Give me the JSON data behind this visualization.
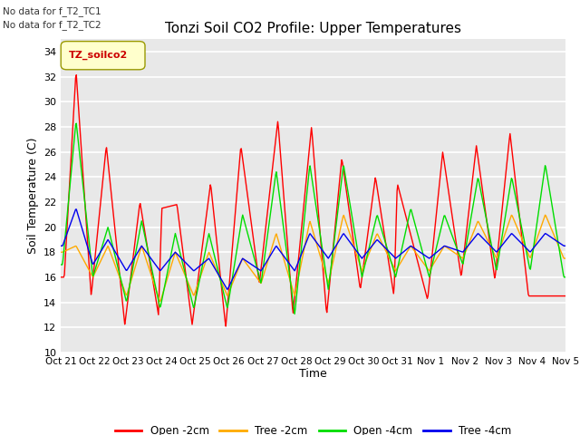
{
  "title": "Tonzi Soil CO2 Profile: Upper Temperatures",
  "ylabel": "Soil Temperature (C)",
  "xlabel": "Time",
  "annotation_line1": "No data for f_T2_TC1",
  "annotation_line2": "No data for f_T2_TC2",
  "legend_label": "TZ_soilco2",
  "series_labels": [
    "Open -2cm",
    "Tree -2cm",
    "Open -4cm",
    "Tree -4cm"
  ],
  "series_colors": [
    "#ff0000",
    "#ffaa00",
    "#00dd00",
    "#0000ee"
  ],
  "ylim": [
    10,
    35
  ],
  "yticks": [
    10,
    12,
    14,
    16,
    18,
    20,
    22,
    24,
    26,
    28,
    30,
    32,
    34
  ],
  "plot_bg": "#e8e8e8",
  "fig_bg": "#ffffff",
  "xtick_labels": [
    "Oct 21",
    "Oct 22",
    "Oct 23",
    "Oct 24",
    "Oct 25",
    "Oct 26",
    "Oct 27",
    "Oct 28",
    "Oct 29",
    "Oct 30",
    "Oct 31",
    "Nov 1",
    "Nov 2",
    "Nov 3",
    "Nov 4",
    "Nov 5"
  ],
  "n_points": 720
}
